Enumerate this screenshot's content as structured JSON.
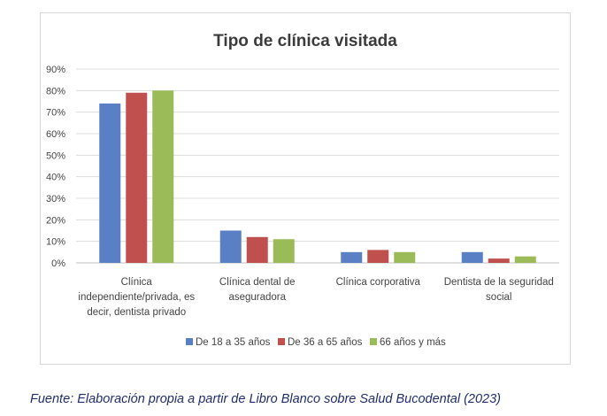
{
  "source_caption": "Fuente: Elaboración propia a partir de Libro Blanco sobre Salud Bucodental (2023)",
  "chart_data": {
    "type": "bar",
    "title": "Tipo de clínica visitada",
    "ylim": [
      0,
      90
    ],
    "yticks": [
      "0%",
      "10%",
      "20%",
      "30%",
      "40%",
      "50%",
      "60%",
      "70%",
      "80%",
      "90%"
    ],
    "ytick_values": [
      0,
      10,
      20,
      30,
      40,
      50,
      60,
      70,
      80,
      90
    ],
    "grid": true,
    "legend_position": "bottom",
    "categories": [
      [
        "Clínica",
        "independiente/privada, es",
        "decir, dentista privado"
      ],
      [
        "Clínica dental de",
        "aseguradora"
      ],
      [
        "Clínica corporativa"
      ],
      [
        "Dentista de la seguridad",
        "social"
      ]
    ],
    "series": [
      {
        "name": "De 18 a 35 años",
        "color": "#5b7fc4",
        "values": [
          74,
          15,
          5,
          5
        ]
      },
      {
        "name": "De 36 a 65 años",
        "color": "#c0504d",
        "values": [
          79,
          12,
          6,
          2
        ]
      },
      {
        "name": "66 años y más",
        "color": "#9bbb59",
        "values": [
          80,
          11,
          5,
          3
        ]
      }
    ]
  }
}
